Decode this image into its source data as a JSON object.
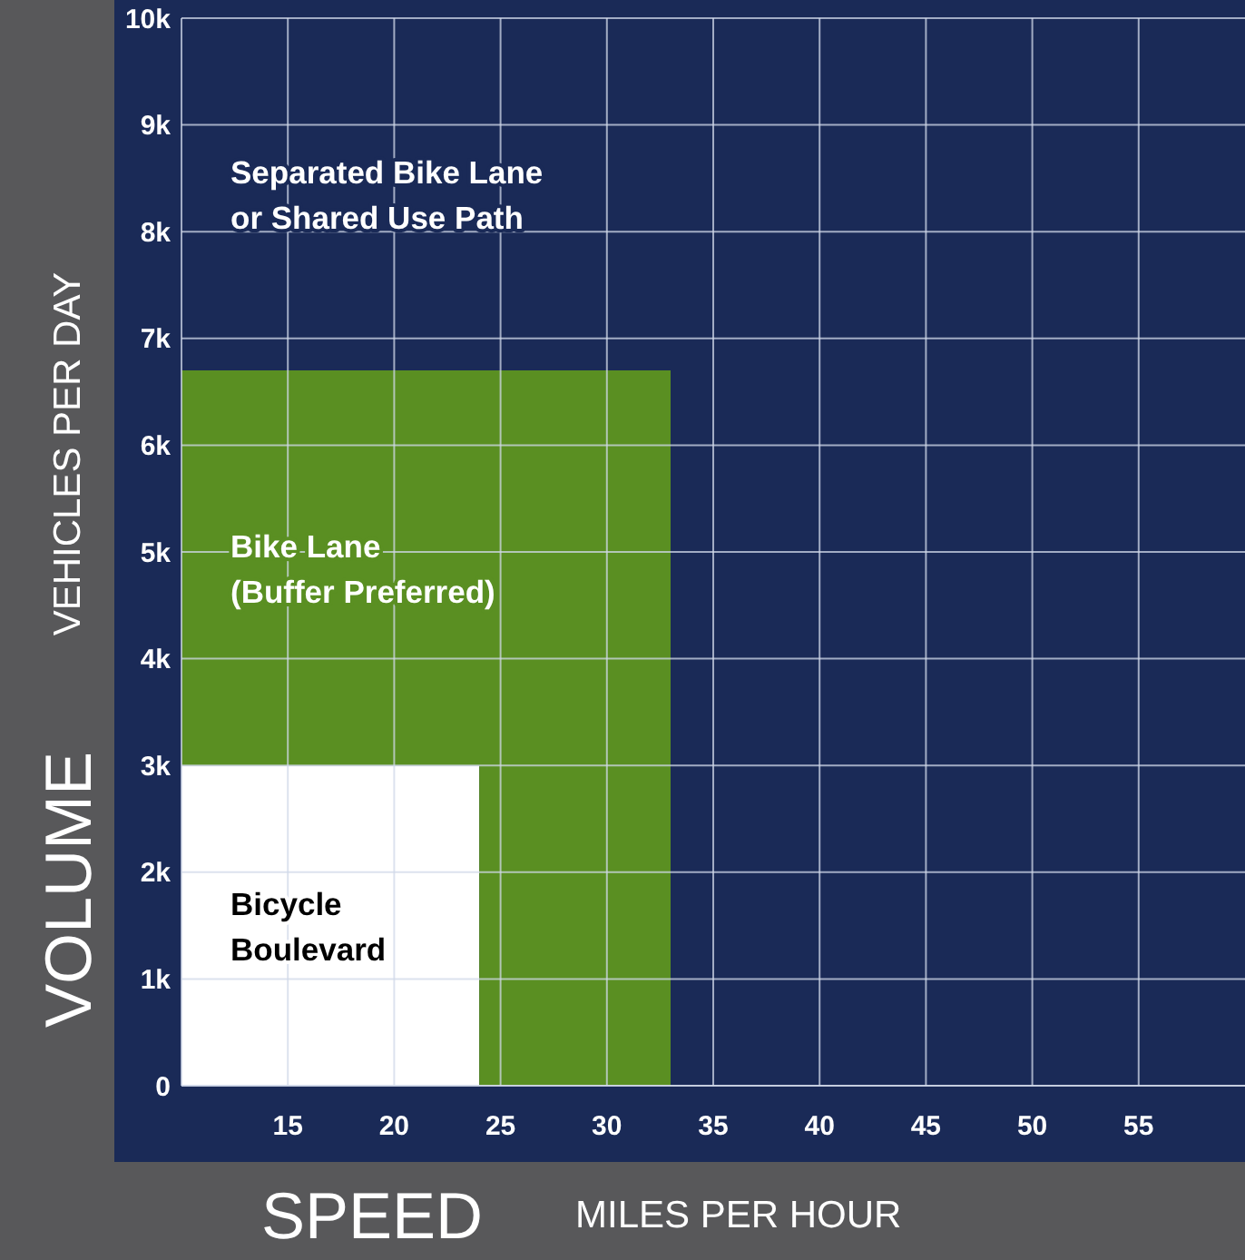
{
  "chart_data": {
    "type": "area",
    "xlabel": "SPEED",
    "ylabel": "VOLUME",
    "annotations": [
      "MILES PER HOUR",
      "VEHICLES PER DAY"
    ],
    "xlim": [
      10,
      60
    ],
    "ylim": [
      0,
      10000
    ],
    "xticks": [
      15,
      20,
      25,
      30,
      35,
      40,
      45,
      50,
      55
    ],
    "yticks": [
      {
        "value": 0,
        "label": "0"
      },
      {
        "value": 1000,
        "label": "1k"
      },
      {
        "value": 2000,
        "label": "2k"
      },
      {
        "value": 3000,
        "label": "3k"
      },
      {
        "value": 4000,
        "label": "4k"
      },
      {
        "value": 5000,
        "label": "5k"
      },
      {
        "value": 6000,
        "label": "6k"
      },
      {
        "value": 7000,
        "label": "7k"
      },
      {
        "value": 8000,
        "label": "8k"
      },
      {
        "value": 9000,
        "label": "9k"
      },
      {
        "value": 10000,
        "label": "10k"
      }
    ],
    "grid": true,
    "stacked": true,
    "series": [
      {
        "name": "Bicycle\nBoulevard",
        "color": "#ffffff",
        "x": [
          10,
          24,
          24,
          33,
          33,
          60
        ],
        "values": [
          3000,
          3000,
          0,
          0,
          0,
          0
        ]
      },
      {
        "name": "Bike Lane\n(Buffer Preferred)",
        "color": "#5a8f22",
        "x": [
          10,
          24,
          24,
          33,
          33,
          60
        ],
        "values": [
          3700,
          3700,
          6700,
          6700,
          0,
          0
        ]
      },
      {
        "name": "Separated Bike Lane\nor Shared Use Path",
        "color": "#1a2a57",
        "x": [
          10,
          24,
          24,
          33,
          33,
          60
        ],
        "values": [
          3300,
          3300,
          3300,
          3300,
          10000,
          10000
        ]
      }
    ]
  }
}
